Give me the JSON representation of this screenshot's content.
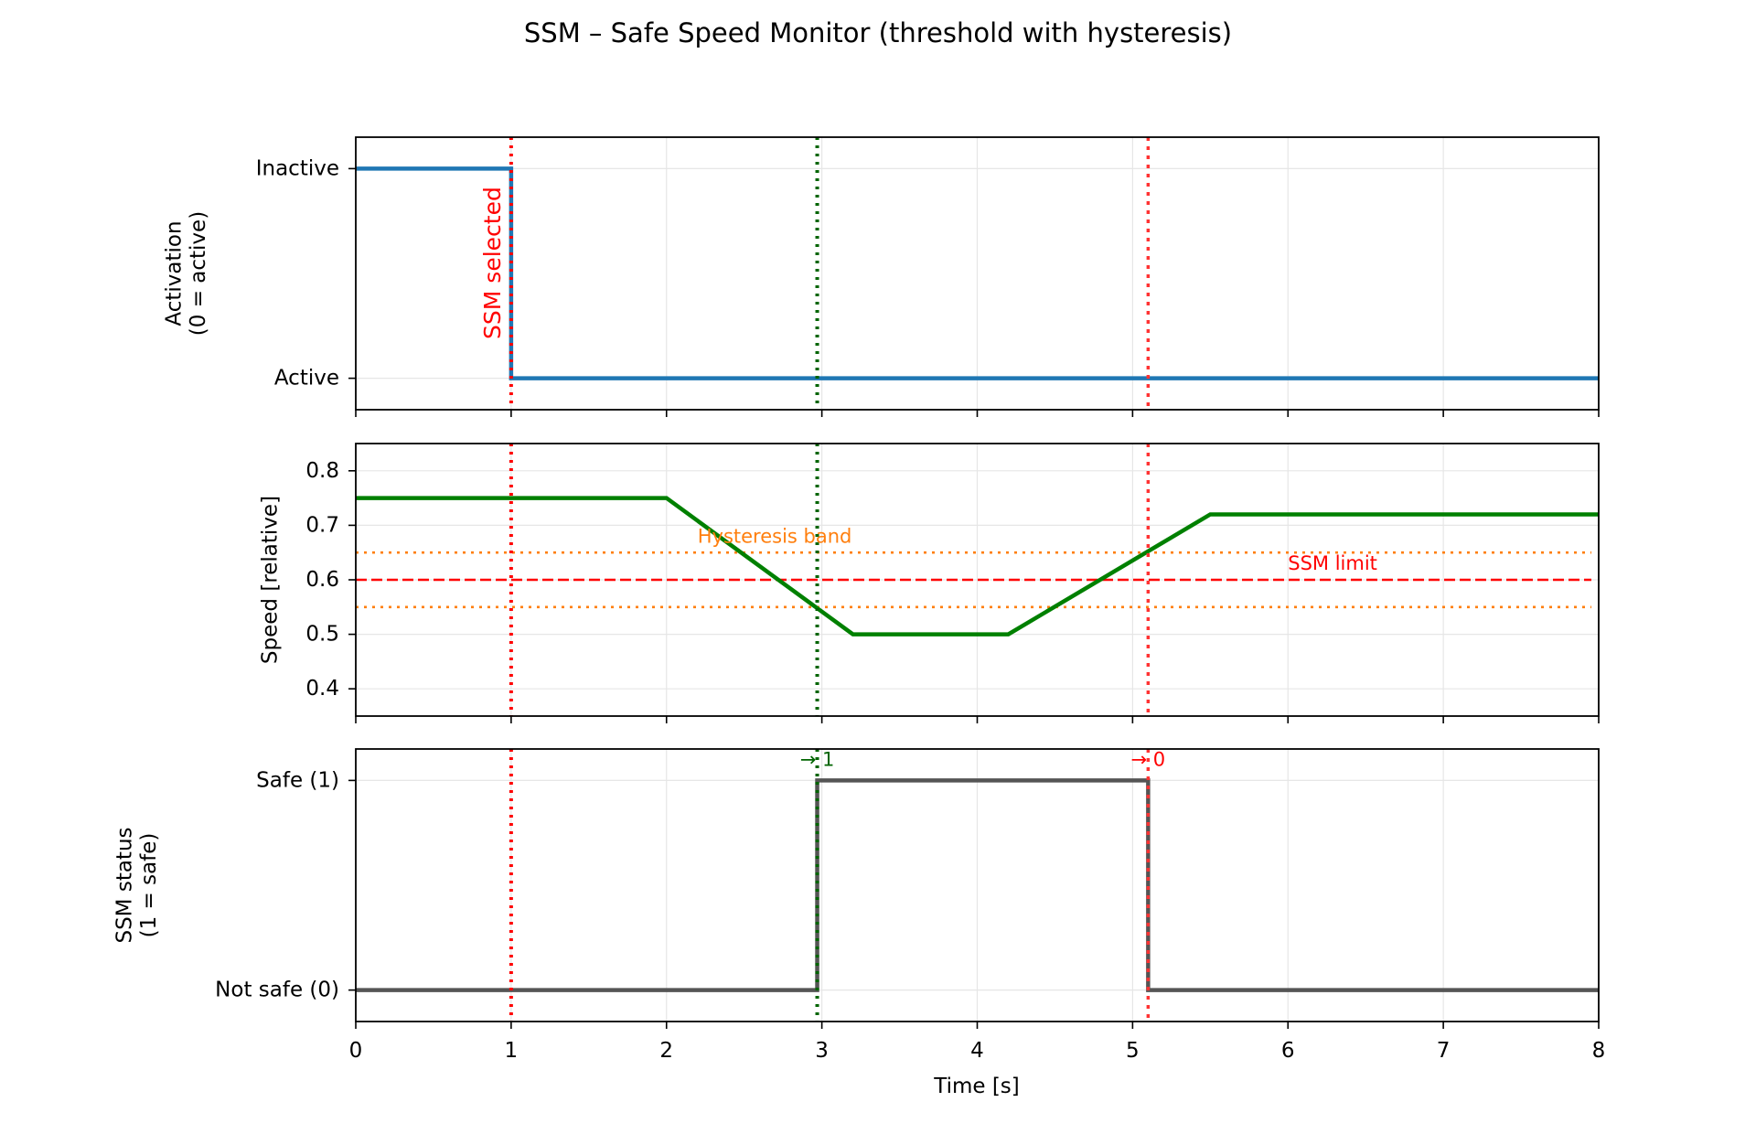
{
  "figure": {
    "title": "SSM – Safe Speed Monitor (threshold with hysteresis)",
    "xlabel": "Time [s]",
    "x_ticks": [
      0,
      1,
      2,
      3,
      4,
      5,
      6,
      7,
      8
    ]
  },
  "colors": {
    "activation": "#1f77b4",
    "speed": "#008000",
    "status": "#555555",
    "limit": "#ff0000",
    "band": "#ff7f0e",
    "marker_select": "#ff0000",
    "marker_safe": "#006400",
    "marker_unsafe": "#ff3333",
    "grid": "#e6e6e6"
  },
  "chart_data": [
    {
      "type": "line",
      "name": "activation",
      "ylabel": "Activation\n(0 = active)",
      "xlim": [
        0,
        8
      ],
      "ylim": [
        -0.15,
        1.15
      ],
      "y_ticks": [
        {
          "value": 0,
          "label": "Active"
        },
        {
          "value": 1,
          "label": "Inactive"
        }
      ],
      "grid": true,
      "step": true,
      "series": [
        {
          "x": [
            0,
            1,
            1,
            8
          ],
          "y": [
            1,
            1,
            0,
            0
          ]
        }
      ],
      "vlines": [
        {
          "x": 1.0,
          "kind": "marker_select"
        },
        {
          "x": 2.97,
          "kind": "marker_safe"
        },
        {
          "x": 5.1,
          "kind": "marker_unsafe"
        }
      ],
      "annotations": [
        {
          "text": "SSM selected",
          "x": 0.88,
          "y": 0.55,
          "rotation": 90,
          "color": "limit"
        }
      ]
    },
    {
      "type": "line",
      "name": "speed",
      "ylabel": "Speed [relative]",
      "xlim": [
        0,
        8
      ],
      "ylim": [
        0.35,
        0.85
      ],
      "y_ticks": [
        {
          "value": 0.4,
          "label": "0.4"
        },
        {
          "value": 0.5,
          "label": "0.5"
        },
        {
          "value": 0.6,
          "label": "0.6"
        },
        {
          "value": 0.7,
          "label": "0.7"
        },
        {
          "value": 0.8,
          "label": "0.8"
        }
      ],
      "grid": true,
      "series": [
        {
          "x": [
            0,
            2,
            3.2,
            4.2,
            5.5,
            8
          ],
          "y": [
            0.75,
            0.75,
            0.5,
            0.5,
            0.72,
            0.72
          ]
        }
      ],
      "hlines": [
        {
          "y": 0.6,
          "kind": "limit"
        },
        {
          "y": 0.65,
          "kind": "band"
        },
        {
          "y": 0.55,
          "kind": "band"
        }
      ],
      "vlines": [
        {
          "x": 1.0,
          "kind": "marker_select"
        },
        {
          "x": 2.97,
          "kind": "marker_safe"
        },
        {
          "x": 5.1,
          "kind": "marker_unsafe"
        }
      ],
      "annotations": [
        {
          "text": "Hysteresis band",
          "x": 2.2,
          "y": 0.68,
          "color": "band"
        },
        {
          "text": "SSM limit",
          "x": 6.0,
          "y": 0.63,
          "color": "limit"
        }
      ]
    },
    {
      "type": "line",
      "name": "status",
      "ylabel": "SSM status\n(1 = safe)",
      "xlim": [
        0,
        8
      ],
      "ylim": [
        -0.15,
        1.15
      ],
      "y_ticks": [
        {
          "value": 0,
          "label": "Not safe (0)"
        },
        {
          "value": 1,
          "label": "Safe (1)"
        }
      ],
      "grid": true,
      "step": true,
      "series": [
        {
          "x": [
            0,
            2.97,
            2.97,
            5.1,
            5.1,
            8
          ],
          "y": [
            0,
            0,
            1,
            1,
            0,
            0
          ]
        }
      ],
      "vlines": [
        {
          "x": 1.0,
          "kind": "marker_select"
        },
        {
          "x": 2.97,
          "kind": "marker_safe"
        },
        {
          "x": 5.1,
          "kind": "marker_unsafe"
        }
      ],
      "annotations": [
        {
          "text": "→ 1",
          "x": 2.97,
          "y": 1.1,
          "color": "marker_safe"
        },
        {
          "text": "→ 0",
          "x": 5.1,
          "y": 1.1,
          "color": "limit"
        }
      ]
    }
  ]
}
